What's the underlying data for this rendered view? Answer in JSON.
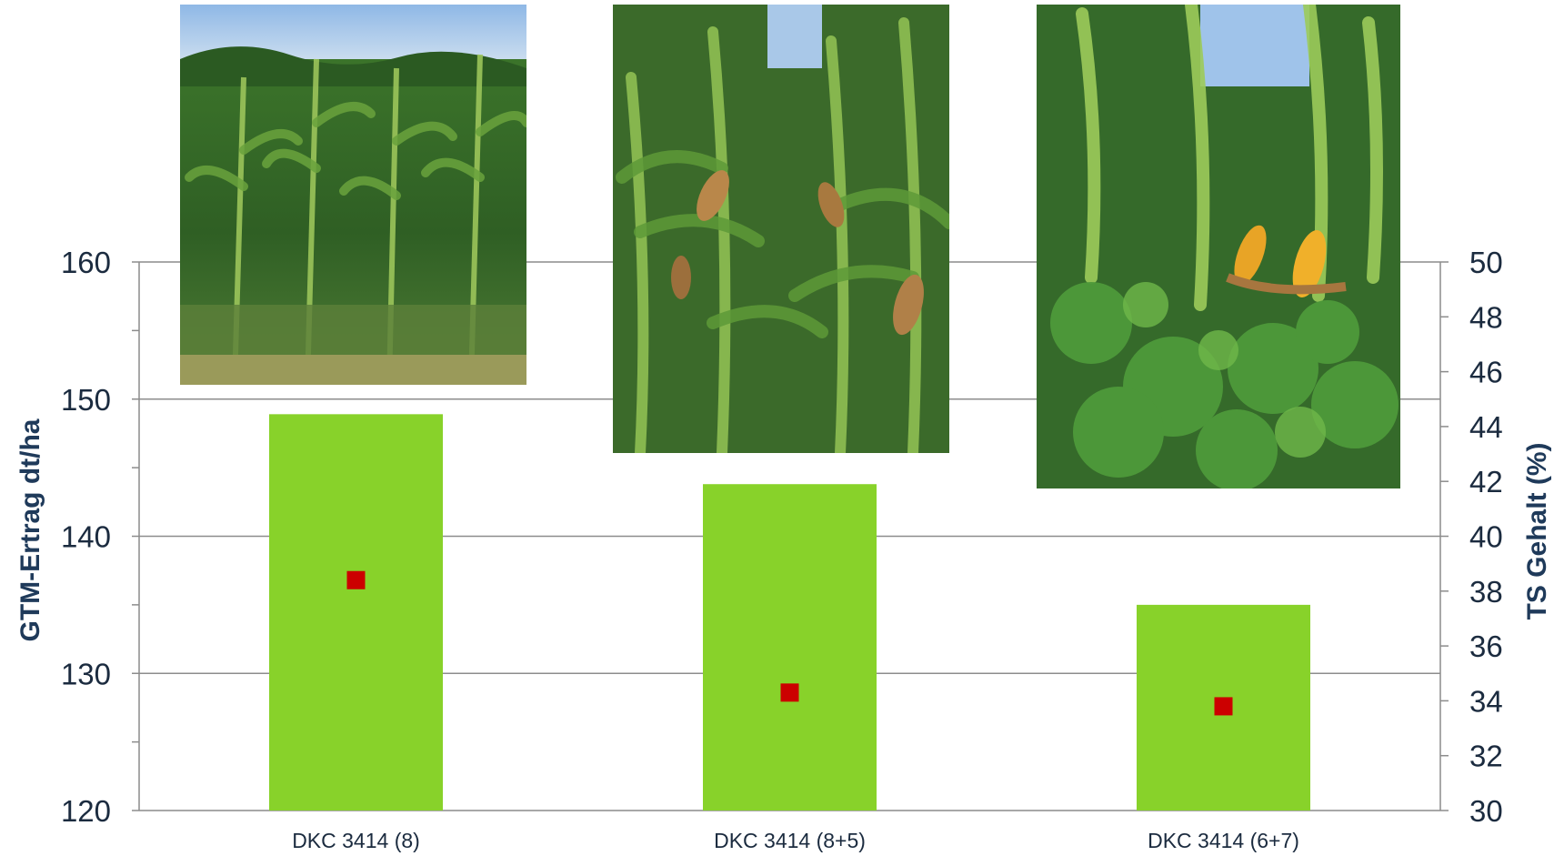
{
  "chart_data": {
    "type": "bar",
    "categories": [
      "DKC 3414 (8)",
      "DKC 3414 (8+5)",
      "DKC 3414 (6+7)"
    ],
    "series": [
      {
        "values": [
          148.9,
          143.8,
          135.0
        ],
        "axis": "left",
        "kind": "bar",
        "color": "#88d22a"
      },
      {
        "values": [
          38.4,
          34.3,
          33.8
        ],
        "axis": "right",
        "kind": "marker",
        "color": "#cc0000"
      }
    ],
    "ylabel": "GTM-Ertrag dt/ha",
    "ylabel_right": "TS Gehalt (%)",
    "ylim": [
      120,
      160
    ],
    "ylim_right": [
      30,
      50
    ],
    "yticks": [
      "120",
      "130",
      "140",
      "150",
      "160"
    ],
    "yticks_right": [
      "30",
      "32",
      "34",
      "36",
      "38",
      "40",
      "42",
      "44",
      "46",
      "48",
      "50"
    ],
    "grid": true
  },
  "photos": [
    {
      "icon": "maize-field-photo-1"
    },
    {
      "icon": "maize-field-photo-2"
    },
    {
      "icon": "maize-field-photo-3"
    }
  ],
  "colors": {
    "grid": "#8c8c8c",
    "text": "#1b2b3f",
    "axis_title": "#1f3a5a"
  }
}
